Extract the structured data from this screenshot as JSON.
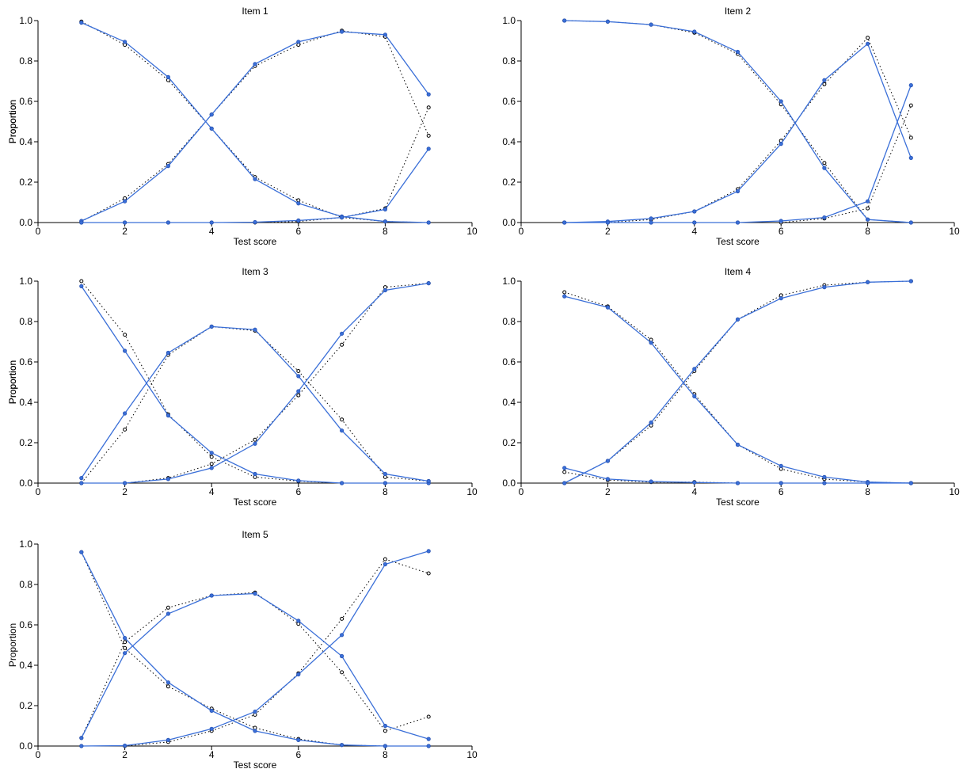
{
  "chart_data": [
    {
      "type": "line",
      "title": "Item 1",
      "xlabel": "Test score",
      "ylabel": "Proportion",
      "xlim": [
        0,
        10
      ],
      "ylim": [
        0,
        1
      ],
      "xticks": [
        "0",
        "2",
        "4",
        "6",
        "8",
        "10"
      ],
      "yticks": [
        "0.0",
        "0.2",
        "0.4",
        "0.6",
        "0.8",
        "1.0"
      ],
      "x": [
        1,
        2,
        3,
        4,
        5,
        6,
        7,
        8,
        9
      ],
      "series": [
        {
          "style": "fitted",
          "values": [
            0.99,
            0.895,
            0.72,
            0.465,
            0.215,
            0.095,
            0.03,
            0.005,
            0.0
          ]
        },
        {
          "style": "fitted",
          "values": [
            0.008,
            0.105,
            0.28,
            0.535,
            0.785,
            0.895,
            0.945,
            0.93,
            0.635
          ]
        },
        {
          "style": "fitted",
          "values": [
            0.0,
            0.0,
            0.0,
            0.0,
            0.002,
            0.01,
            0.025,
            0.065,
            0.365
          ]
        },
        {
          "style": "observed",
          "values": [
            0.995,
            0.88,
            0.705,
            0.465,
            0.225,
            0.11,
            0.025,
            0.005,
            0.0
          ]
        },
        {
          "style": "observed",
          "values": [
            0.005,
            0.12,
            0.29,
            0.535,
            0.775,
            0.88,
            0.95,
            0.92,
            0.43
          ]
        },
        {
          "style": "observed",
          "values": [
            0.0,
            0.0,
            0.0,
            0.0,
            0.0,
            0.005,
            0.025,
            0.07,
            0.57
          ]
        }
      ]
    },
    {
      "type": "line",
      "title": "Item 2",
      "xlabel": "Test score",
      "ylabel": "Proportion",
      "xlim": [
        0,
        10
      ],
      "ylim": [
        0,
        1
      ],
      "xticks": [
        "0",
        "2",
        "4",
        "6",
        "8",
        "10"
      ],
      "yticks": [
        "0.0",
        "0.2",
        "0.4",
        "0.6",
        "0.8",
        "1.0"
      ],
      "x": [
        1,
        2,
        3,
        4,
        5,
        6,
        7,
        8,
        9
      ],
      "series": [
        {
          "style": "fitted",
          "values": [
            1.0,
            0.995,
            0.98,
            0.945,
            0.845,
            0.6,
            0.27,
            0.015,
            0.0
          ]
        },
        {
          "style": "fitted",
          "values": [
            0.0,
            0.005,
            0.02,
            0.055,
            0.155,
            0.39,
            0.705,
            0.885,
            0.32
          ]
        },
        {
          "style": "fitted",
          "values": [
            0.0,
            0.0,
            0.0,
            0.0,
            0.0,
            0.008,
            0.025,
            0.105,
            0.68
          ]
        },
        {
          "style": "observed",
          "values": [
            1.0,
            0.995,
            0.98,
            0.94,
            0.835,
            0.585,
            0.295,
            0.015,
            0.0
          ]
        },
        {
          "style": "observed",
          "values": [
            0.0,
            0.0,
            0.015,
            0.055,
            0.165,
            0.405,
            0.685,
            0.915,
            0.42
          ]
        },
        {
          "style": "observed",
          "values": [
            0.0,
            0.0,
            0.0,
            0.0,
            0.0,
            0.0,
            0.02,
            0.07,
            0.58
          ]
        }
      ]
    },
    {
      "type": "line",
      "title": "Item 3",
      "xlabel": "Test score",
      "ylabel": "Proportion",
      "xlim": [
        0,
        10
      ],
      "ylim": [
        0,
        1
      ],
      "xticks": [
        "0",
        "2",
        "4",
        "6",
        "8",
        "10"
      ],
      "yticks": [
        "0.0",
        "0.2",
        "0.4",
        "0.6",
        "0.8",
        "1.0"
      ],
      "x": [
        1,
        2,
        3,
        4,
        5,
        6,
        7,
        8,
        9
      ],
      "series": [
        {
          "style": "fitted",
          "values": [
            0.975,
            0.655,
            0.335,
            0.15,
            0.045,
            0.012,
            0.0,
            0.0,
            0.0
          ]
        },
        {
          "style": "fitted",
          "values": [
            0.025,
            0.345,
            0.645,
            0.775,
            0.76,
            0.53,
            0.26,
            0.045,
            0.01
          ]
        },
        {
          "style": "fitted",
          "values": [
            0.0,
            0.0,
            0.02,
            0.075,
            0.195,
            0.455,
            0.74,
            0.955,
            0.99
          ]
        },
        {
          "style": "observed",
          "values": [
            1.0,
            0.735,
            0.34,
            0.13,
            0.03,
            0.01,
            0.0,
            0.0,
            0.0
          ]
        },
        {
          "style": "observed",
          "values": [
            0.0,
            0.265,
            0.635,
            0.775,
            0.755,
            0.555,
            0.315,
            0.03,
            0.01
          ]
        },
        {
          "style": "observed",
          "values": [
            0.0,
            0.0,
            0.025,
            0.095,
            0.215,
            0.435,
            0.685,
            0.97,
            0.99
          ]
        }
      ]
    },
    {
      "type": "line",
      "title": "Item 4",
      "xlabel": "Test score",
      "ylabel": "Proportion",
      "xlim": [
        0,
        10
      ],
      "ylim": [
        0,
        1
      ],
      "xticks": [
        "0",
        "2",
        "4",
        "6",
        "8",
        "10"
      ],
      "yticks": [
        "0.0",
        "0.2",
        "0.4",
        "0.6",
        "0.8",
        "1.0"
      ],
      "x": [
        1,
        2,
        3,
        4,
        5,
        6,
        7,
        8,
        9
      ],
      "series": [
        {
          "style": "fitted",
          "values": [
            0.925,
            0.87,
            0.695,
            0.43,
            0.19,
            0.085,
            0.03,
            0.005,
            0.0
          ]
        },
        {
          "style": "fitted",
          "values": [
            0.0,
            0.11,
            0.3,
            0.565,
            0.81,
            0.915,
            0.97,
            0.995,
            1.0
          ]
        },
        {
          "style": "fitted",
          "values": [
            0.075,
            0.02,
            0.008,
            0.003,
            0.0,
            0.0,
            0.0,
            0.0,
            0.0
          ]
        },
        {
          "style": "observed",
          "values": [
            0.945,
            0.875,
            0.71,
            0.44,
            0.19,
            0.07,
            0.02,
            0.005,
            0.0
          ]
        },
        {
          "style": "observed",
          "values": [
            0.0,
            0.11,
            0.285,
            0.555,
            0.81,
            0.93,
            0.98,
            0.995,
            1.0
          ]
        },
        {
          "style": "observed",
          "values": [
            0.055,
            0.015,
            0.005,
            0.005,
            0.0,
            0.0,
            0.0,
            0.0,
            0.0
          ]
        }
      ]
    },
    {
      "type": "line",
      "title": "Item 5",
      "xlabel": "Test score",
      "ylabel": "Proportion",
      "xlim": [
        0,
        10
      ],
      "ylim": [
        0,
        1
      ],
      "xticks": [
        "0",
        "2",
        "4",
        "6",
        "8",
        "10"
      ],
      "yticks": [
        "0.0",
        "0.2",
        "0.4",
        "0.6",
        "0.8",
        "1.0"
      ],
      "x": [
        1,
        2,
        3,
        4,
        5,
        6,
        7,
        8,
        9
      ],
      "series": [
        {
          "style": "fitted",
          "values": [
            0.96,
            0.535,
            0.315,
            0.175,
            0.075,
            0.03,
            0.005,
            0.0,
            0.0
          ]
        },
        {
          "style": "fitted",
          "values": [
            0.04,
            0.46,
            0.655,
            0.745,
            0.755,
            0.62,
            0.445,
            0.1,
            0.035
          ]
        },
        {
          "style": "fitted",
          "values": [
            0.0,
            0.002,
            0.03,
            0.085,
            0.17,
            0.355,
            0.55,
            0.9,
            0.965
          ]
        },
        {
          "style": "observed",
          "values": [
            0.96,
            0.485,
            0.295,
            0.185,
            0.09,
            0.035,
            0.005,
            0.0,
            0.0
          ]
        },
        {
          "style": "observed",
          "values": [
            0.04,
            0.515,
            0.685,
            0.745,
            0.76,
            0.605,
            0.365,
            0.075,
            0.145
          ]
        },
        {
          "style": "observed",
          "values": [
            0.0,
            0.0,
            0.02,
            0.075,
            0.155,
            0.36,
            0.63,
            0.925,
            0.855
          ]
        }
      ]
    }
  ]
}
